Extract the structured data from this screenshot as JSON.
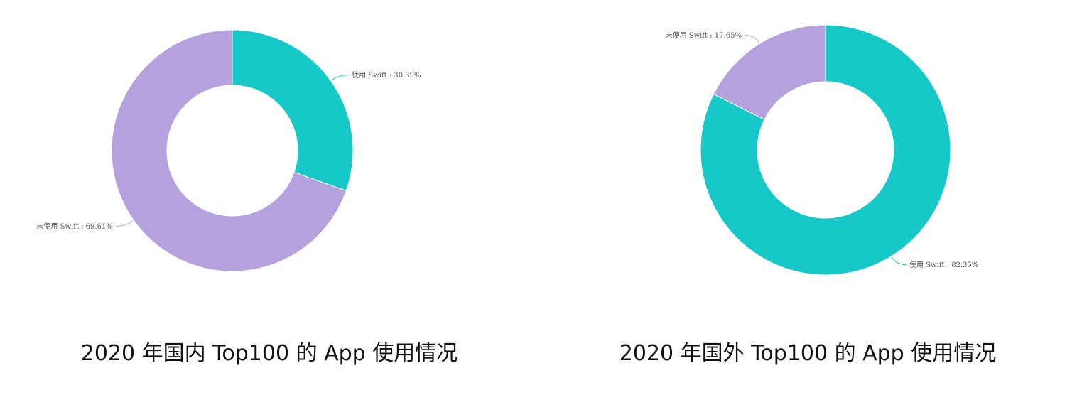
{
  "chart_data": [
    {
      "type": "pie",
      "title": "2020 年国内 Top100 的 App 使用情况",
      "series": [
        {
          "slices": [
            {
              "name": "使用 Swift",
              "value": 30.39,
              "label": "使用 Swift : 30.39%",
              "color": "#17c8c8"
            },
            {
              "name": "未使用 Swift",
              "value": 69.61,
              "label": "未使用 Swift : 69.61%",
              "color": "#b4a1dd"
            }
          ]
        }
      ],
      "legend": "none",
      "donut": true
    },
    {
      "type": "pie",
      "title": "2020 年国外 Top100 的 App 使用情况",
      "series": [
        {
          "slices": [
            {
              "name": "使用 Swift",
              "value": 82.35,
              "label": "使用 Swift : 82.35%",
              "color": "#17c8c8"
            },
            {
              "name": "未使用 Swift",
              "value": 17.65,
              "label": "未使用 Swift : 17.65%",
              "color": "#b4a1dd"
            }
          ]
        }
      ],
      "legend": "none",
      "donut": true
    }
  ]
}
